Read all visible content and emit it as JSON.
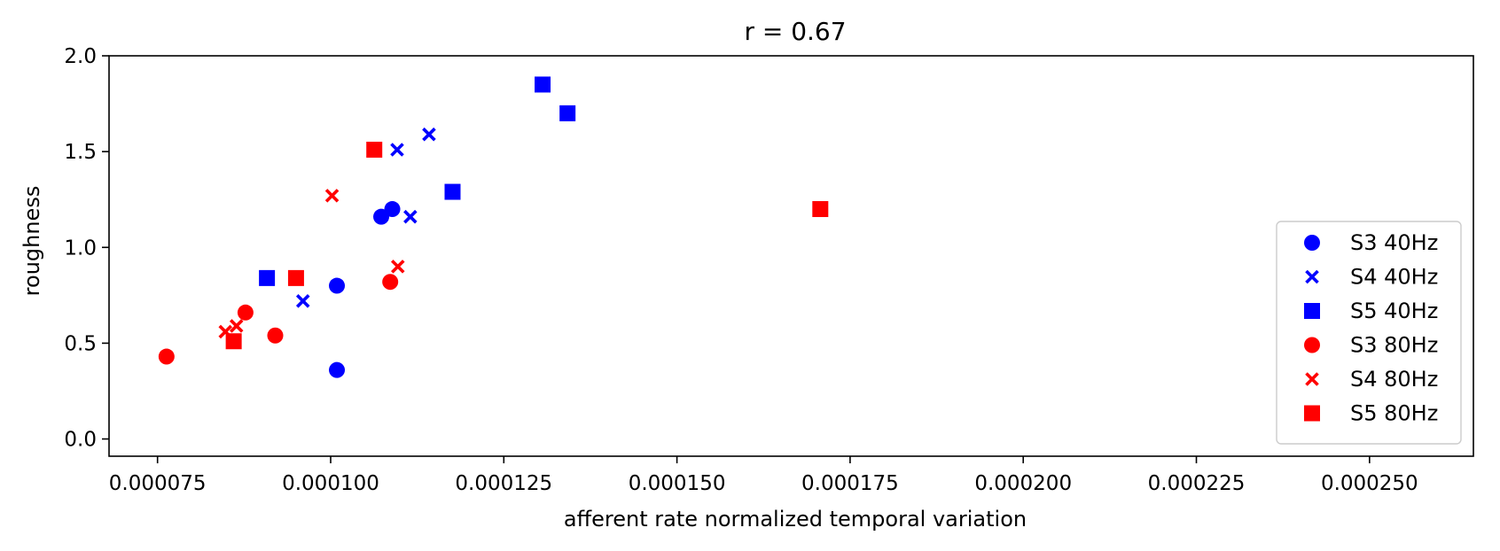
{
  "chart_data": {
    "type": "scatter",
    "title": "r = 0.67",
    "xlabel": "afferent rate normalized temporal variation",
    "ylabel": "roughness",
    "xlim": [
      6.8e-05,
      0.000265
    ],
    "ylim": [
      -0.09,
      2.0
    ],
    "xticks": [
      7.5e-05,
      0.0001,
      0.000125,
      0.00015,
      0.000175,
      0.0002,
      0.000225,
      0.00025
    ],
    "xtick_labels": [
      "0.000075",
      "0.000100",
      "0.000125",
      "0.000150",
      "0.000175",
      "0.000200",
      "0.000225",
      "0.000250"
    ],
    "yticks": [
      0.0,
      0.5,
      1.0,
      1.5,
      2.0
    ],
    "ytick_labels": [
      "0.0",
      "0.5",
      "1.0",
      "1.5",
      "2.0"
    ],
    "grid": false,
    "legend_position": "lower-right",
    "series": [
      {
        "name": "S3 40Hz",
        "marker": "circle",
        "color": "#0000ff",
        "points": [
          [
            0.0001073,
            1.16
          ],
          [
            0.0001089,
            1.2
          ],
          [
            0.0001009,
            0.8
          ],
          [
            0.0001009,
            0.36
          ]
        ]
      },
      {
        "name": "S4 40Hz",
        "marker": "x",
        "color": "#0000ff",
        "points": [
          [
            0.0001142,
            1.59
          ],
          [
            0.0001096,
            1.51
          ],
          [
            0.0001115,
            1.16
          ],
          [
            9.6e-05,
            0.72
          ]
        ]
      },
      {
        "name": "S5 40Hz",
        "marker": "square",
        "color": "#0000ff",
        "points": [
          [
            0.0001306,
            1.85
          ],
          [
            0.0001342,
            1.7
          ],
          [
            0.0001176,
            1.29
          ],
          [
            9.08e-05,
            0.84
          ]
        ]
      },
      {
        "name": "S3 80Hz",
        "marker": "circle",
        "color": "#ff0000",
        "points": [
          [
            7.63e-05,
            0.43
          ],
          [
            8.77e-05,
            0.66
          ],
          [
            9.2e-05,
            0.54
          ],
          [
            0.0001086,
            0.82
          ]
        ]
      },
      {
        "name": "S4 80Hz",
        "marker": "x",
        "color": "#ff0000",
        "points": [
          [
            0.0001002,
            1.27
          ],
          [
            0.0001097,
            0.9
          ],
          [
            8.48e-05,
            0.56
          ],
          [
            8.64e-05,
            0.59
          ]
        ]
      },
      {
        "name": "S5 80Hz",
        "marker": "square",
        "color": "#ff0000",
        "points": [
          [
            0.0001063,
            1.51
          ],
          [
            9.5e-05,
            0.84
          ],
          [
            8.6e-05,
            0.51
          ],
          [
            0.0001707,
            1.2
          ]
        ]
      }
    ]
  }
}
